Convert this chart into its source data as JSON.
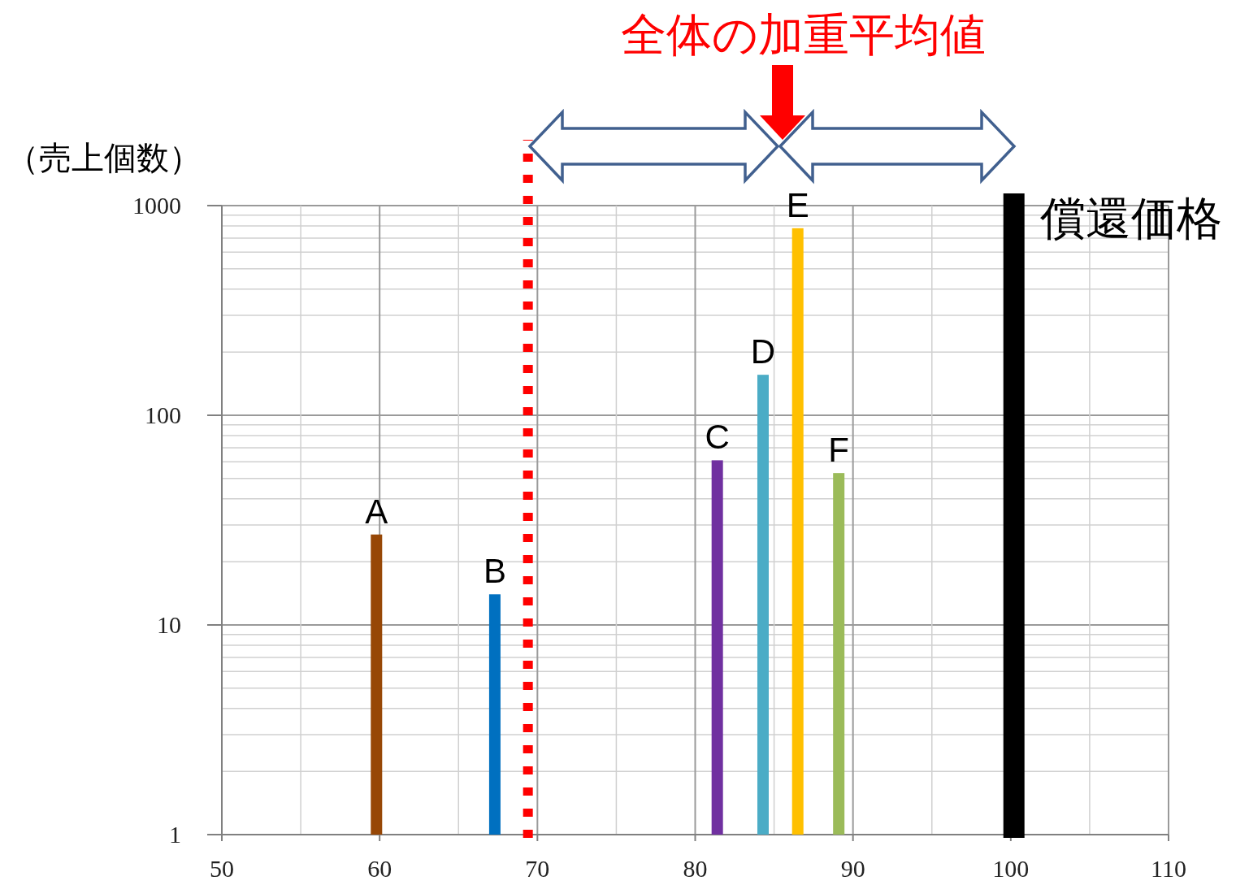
{
  "chart_data": {
    "type": "bar",
    "ylabel": "（売上個数）",
    "log": "y",
    "grid": true,
    "xlim": [
      50,
      110
    ],
    "xticks": [
      50,
      60,
      70,
      80,
      90,
      100,
      110
    ],
    "ylim": [
      1,
      1000
    ],
    "yticks": [
      1,
      10,
      100,
      1000
    ],
    "series": [
      {
        "name": "A",
        "color": "#974706",
        "x": [
          59.8
        ],
        "values": [
          27
        ]
      },
      {
        "name": "B",
        "color": "#0070c0",
        "x": [
          67.3
        ],
        "values": [
          14
        ]
      },
      {
        "name": "C",
        "color": "#7030a0",
        "x": [
          81.4
        ],
        "values": [
          61
        ]
      },
      {
        "name": "D",
        "color": "#4bacc6",
        "x": [
          84.3
        ],
        "values": [
          156
        ]
      },
      {
        "name": "E",
        "color": "#ffc000",
        "x": [
          86.5
        ],
        "values": [
          780
        ]
      },
      {
        "name": "F",
        "color": "#9bbb59",
        "x": [
          89.1
        ],
        "values": [
          53
        ]
      }
    ],
    "ref_lines": [
      {
        "axis": "x",
        "value": 69.4,
        "color": "#ff0000",
        "line_style": "dotted"
      },
      {
        "axis": "x",
        "value": 100.2,
        "label": "償還価格",
        "color": "#000000",
        "line_style": "solid"
      }
    ],
    "annotations": [
      "全体の加重平均値"
    ]
  }
}
